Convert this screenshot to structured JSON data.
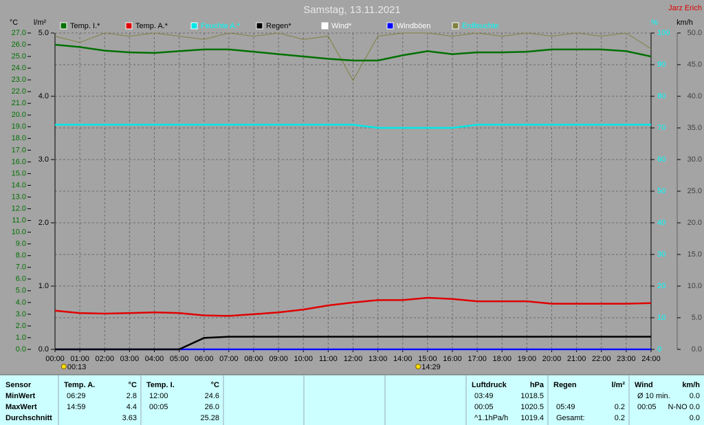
{
  "chart_data": {
    "type": "line",
    "title": "Samstag, 13.11.2021",
    "author": "Jarz Erich",
    "y_label": "°C",
    "y2_label": "l/m²",
    "y3_label": "%",
    "y4_label": "km/h",
    "x": [
      0,
      1,
      2,
      3,
      4,
      5,
      6,
      7,
      8,
      9,
      10,
      11,
      12,
      13,
      14,
      15,
      16,
      17,
      18,
      19,
      20,
      21,
      22,
      23,
      24
    ],
    "xlim": [
      0,
      24
    ],
    "xticks": [
      {
        "value": 0,
        "label": "00:00"
      },
      {
        "value": 1,
        "label": "01:00"
      },
      {
        "value": 2,
        "label": "02:00"
      },
      {
        "value": 3,
        "label": "03:00"
      },
      {
        "value": 4,
        "label": "04:00"
      },
      {
        "value": 5,
        "label": "05:00"
      },
      {
        "value": 6,
        "label": "06:00"
      },
      {
        "value": 7,
        "label": "07:00"
      },
      {
        "value": 8,
        "label": "08:00"
      },
      {
        "value": 9,
        "label": "09:00"
      },
      {
        "value": 10,
        "label": "10:00"
      },
      {
        "value": 11,
        "label": "11:00"
      },
      {
        "value": 12,
        "label": "12:00"
      },
      {
        "value": 13,
        "label": "13:00"
      },
      {
        "value": 14,
        "label": "14:00"
      },
      {
        "value": 15,
        "label": "15:00"
      },
      {
        "value": 16,
        "label": "16:00"
      },
      {
        "value": 17,
        "label": "17:00"
      },
      {
        "value": 18,
        "label": "18:00"
      },
      {
        "value": 19,
        "label": "19:00"
      },
      {
        "value": 20,
        "label": "20:00"
      },
      {
        "value": 21,
        "label": "21:00"
      },
      {
        "value": 22,
        "label": "22:00"
      },
      {
        "value": 23,
        "label": "23:00"
      },
      {
        "value": 24,
        "label": "24:00"
      }
    ],
    "ylim": [
      0,
      27
    ],
    "yticks": [
      {
        "value": 0,
        "label": "0.0"
      },
      {
        "value": 1,
        "label": "1.0"
      },
      {
        "value": 2,
        "label": "2.0"
      },
      {
        "value": 3,
        "label": "3.0"
      },
      {
        "value": 4,
        "label": "4.0"
      },
      {
        "value": 5,
        "label": "5.0"
      },
      {
        "value": 6,
        "label": "6.0"
      },
      {
        "value": 7,
        "label": "7.0"
      },
      {
        "value": 8,
        "label": "8.0"
      },
      {
        "value": 9,
        "label": "9.0"
      },
      {
        "value": 10,
        "label": "10.0"
      },
      {
        "value": 11,
        "label": "11.0"
      },
      {
        "value": 12,
        "label": "12.0"
      },
      {
        "value": 13,
        "label": "13.0"
      },
      {
        "value": 14,
        "label": "14.0"
      },
      {
        "value": 15,
        "label": "15.0"
      },
      {
        "value": 16,
        "label": "16.0"
      },
      {
        "value": 17,
        "label": "17.0"
      },
      {
        "value": 18,
        "label": "18.0"
      },
      {
        "value": 19,
        "label": "19.0"
      },
      {
        "value": 20,
        "label": "20.0"
      },
      {
        "value": 21,
        "label": "21.0"
      },
      {
        "value": 22,
        "label": "22.0"
      },
      {
        "value": 23,
        "label": "23.0"
      },
      {
        "value": 24,
        "label": "24.0"
      },
      {
        "value": 25,
        "label": "25.0"
      },
      {
        "value": 26,
        "label": "26.0"
      },
      {
        "value": 27,
        "label": "27.0"
      }
    ],
    "y2lim": [
      0,
      5
    ],
    "y2ticks": [
      {
        "value": 0,
        "label": "0.0"
      },
      {
        "value": 1,
        "label": "1.0"
      },
      {
        "value": 2,
        "label": "2.0"
      },
      {
        "value": 3,
        "label": "3.0"
      },
      {
        "value": 4,
        "label": "4.0"
      },
      {
        "value": 5,
        "label": "5.0"
      }
    ],
    "y3lim": [
      0,
      100
    ],
    "y3ticks": [
      0,
      10,
      20,
      30,
      40,
      50,
      60,
      70,
      80,
      90,
      100
    ],
    "y4lim": [
      0,
      50
    ],
    "y4ticks": [
      {
        "value": 0,
        "label": "0.0"
      },
      {
        "value": 5,
        "label": "5.0"
      },
      {
        "value": 10,
        "label": "10.0"
      },
      {
        "value": 15,
        "label": "15.0"
      },
      {
        "value": 20,
        "label": "20.0"
      },
      {
        "value": 25,
        "label": "25.0"
      },
      {
        "value": 30,
        "label": "30.0"
      },
      {
        "value": 35,
        "label": "35.0"
      },
      {
        "value": 40,
        "label": "40.0"
      },
      {
        "value": 45,
        "label": "45.0"
      },
      {
        "value": 50,
        "label": "50.0"
      }
    ],
    "grid": true,
    "annotations": [
      {
        "x": 0.2167,
        "label": "00:13"
      },
      {
        "x": 14.4833,
        "label": "14:29"
      }
    ],
    "series": [
      {
        "name": "Wind*",
        "color": "#ffffff",
        "text_color": "#ffffff",
        "axis": "y4",
        "values": [
          0,
          0,
          0,
          0,
          0,
          0,
          0,
          0,
          0,
          0,
          0,
          0,
          0,
          0,
          0,
          0,
          0,
          0,
          0,
          0,
          0,
          0,
          0,
          0,
          0
        ]
      },
      {
        "name": "Windböen",
        "color": "#0000ff",
        "text_color": "#ffffff",
        "axis": "y4",
        "values": [
          0,
          0,
          0,
          0,
          0,
          0,
          0,
          0,
          0,
          0,
          0,
          0,
          0,
          0,
          0,
          0,
          0,
          0,
          0,
          0,
          0,
          0,
          0,
          0,
          0
        ]
      },
      {
        "name": "Erdfeuchte",
        "color": "#808040",
        "text_color": "#00ffff",
        "axis": "y3",
        "values": [
          99,
          97,
          100,
          99,
          100,
          99,
          98,
          100,
          99,
          100,
          98,
          99,
          85,
          99,
          100,
          100,
          99,
          100,
          99,
          100,
          99,
          100,
          99,
          100,
          95
        ]
      },
      {
        "name": "Feuchte A.*",
        "color": "#00e8e8",
        "text_color": "#00ffff",
        "axis": "y3",
        "values": [
          71,
          71,
          71,
          71,
          71,
          71,
          71,
          71,
          71,
          71,
          71,
          71,
          71,
          70,
          70,
          70,
          70,
          71,
          71,
          71,
          71,
          71,
          71,
          71,
          71
        ]
      },
      {
        "name": "Temp. I.*",
        "color": "#007000",
        "text_color": "#000000",
        "axis": "y",
        "values": [
          26.0,
          25.8,
          25.5,
          25.35,
          25.3,
          25.45,
          25.6,
          25.6,
          25.4,
          25.2,
          25.0,
          24.8,
          24.65,
          24.65,
          25.1,
          25.45,
          25.2,
          25.35,
          25.35,
          25.4,
          25.6,
          25.6,
          25.6,
          25.45,
          25.0
        ]
      },
      {
        "name": "Temp. A.*",
        "color": "#e00000",
        "text_color": "#000000",
        "axis": "y",
        "values": [
          3.3,
          3.1,
          3.05,
          3.1,
          3.15,
          3.1,
          2.9,
          2.85,
          3.0,
          3.15,
          3.4,
          3.75,
          4.0,
          4.2,
          4.2,
          4.4,
          4.3,
          4.1,
          4.1,
          4.1,
          3.9,
          3.9,
          3.9,
          3.9,
          3.95
        ]
      },
      {
        "name": "Regen*",
        "color": "#000000",
        "text_color": "#000000",
        "axis": "y2",
        "values": [
          0,
          0,
          0,
          0,
          0,
          0,
          0.18,
          0.2,
          0.2,
          0.2,
          0.2,
          0.2,
          0.2,
          0.2,
          0.2,
          0.2,
          0.2,
          0.2,
          0.2,
          0.2,
          0.2,
          0.2,
          0.2,
          0.2,
          0.2
        ]
      }
    ]
  },
  "table": {
    "columns": [
      {
        "header": "Sensor",
        "min": {
          "time": "MinWert"
        },
        "max": {
          "time": "MaxWert"
        },
        "avg": {
          "time": "Durchschnitt"
        }
      },
      {
        "header": "Temp. A.",
        "unit": "°C",
        "min": {
          "time": "06:29",
          "value": "2.8"
        },
        "max": {
          "time": "14:59",
          "value": "4.4"
        },
        "avg": {
          "value": "3.63"
        }
      },
      {
        "header": "Temp. I.",
        "unit": "°C",
        "min": {
          "time": "12:00",
          "value": "24.6"
        },
        "max": {
          "time": "00:05",
          "value": "26.0"
        },
        "avg": {
          "value": "25.28"
        }
      },
      {
        "header": "Luftdruck",
        "unit": "hPa",
        "min": {
          "time": "03:49",
          "value": "1018.5"
        },
        "max": {
          "time": "00:05",
          "value": "1020.5"
        },
        "avg": {
          "time": "^1.1hPa/h",
          "value": "1019.4"
        }
      },
      {
        "header": "Regen",
        "unit": "l/m²",
        "max": {
          "time": "05:49",
          "value": "0.2"
        },
        "avg": {
          "time": "Gesamt:",
          "value": "0.2"
        }
      },
      {
        "header": "Wind",
        "unit": "km/h",
        "min": {
          "time": "Ø 10 min.",
          "value": "0.0"
        },
        "max": {
          "time": "00:05",
          "value": "N-NO 0.0"
        },
        "avg": {
          "value": "0.0"
        }
      }
    ]
  }
}
